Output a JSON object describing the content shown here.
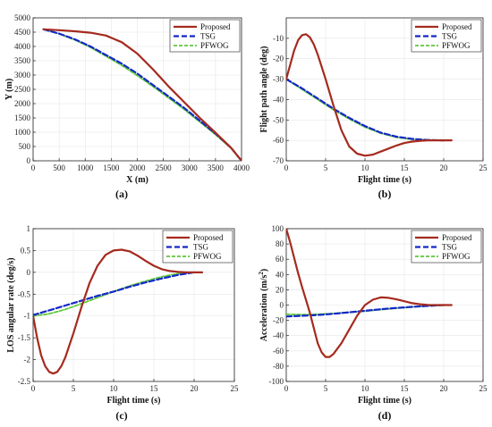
{
  "figure": {
    "colors": {
      "proposed": "#a52a1e",
      "tsg": "#1428c8",
      "pfwog": "#5ec83a",
      "axis": "#222222",
      "grid": "#e6e6e6"
    },
    "panels": [
      {
        "id": "a",
        "caption": "(a)",
        "type": "line",
        "xlabel": "X (m)",
        "ylabel": "Y (m)",
        "xlim": [
          0,
          4000
        ],
        "ylim": [
          0,
          5000
        ],
        "xticks": [
          0,
          500,
          1000,
          1500,
          2000,
          2500,
          3000,
          3500,
          4000
        ],
        "yticks": [
          0,
          500,
          1000,
          1500,
          2000,
          2500,
          3000,
          3500,
          4000,
          4500,
          5000
        ],
        "legend": [
          "Proposed",
          "TSG",
          "PFWOG"
        ],
        "series": [
          {
            "name": "Proposed",
            "style": "solid",
            "x": [
              200,
              500,
              800,
              1100,
              1400,
              1700,
              2000,
              2300,
              2600,
              2900,
              3200,
              3500,
              3800,
              4000
            ],
            "y": [
              4600,
              4570,
              4530,
              4480,
              4380,
              4150,
              3750,
              3200,
              2600,
              2050,
              1500,
              980,
              450,
              0
            ]
          },
          {
            "name": "TSG",
            "style": "dashed",
            "x": [
              200,
              500,
              800,
              1100,
              1400,
              1700,
              2000,
              2300,
              2600,
              2900,
              3200,
              3500,
              3800,
              4000
            ],
            "y": [
              4600,
              4450,
              4250,
              4000,
              3700,
              3400,
              3050,
              2650,
              2250,
              1850,
              1400,
              950,
              450,
              0
            ]
          },
          {
            "name": "PFWOG",
            "style": "dashed",
            "x": [
              200,
              500,
              800,
              1100,
              1400,
              1700,
              2000,
              2300,
              2600,
              2900,
              3200,
              3500,
              3800,
              4000
            ],
            "y": [
              4600,
              4440,
              4230,
              3970,
              3660,
              3340,
              2980,
              2600,
              2200,
              1800,
              1360,
              920,
              440,
              0
            ]
          }
        ]
      },
      {
        "id": "b",
        "caption": "(b)",
        "type": "line",
        "xlabel": "Flight time (s)",
        "ylabel": "Flight path angle (deg)",
        "xlim": [
          0,
          25
        ],
        "ylim": [
          -70,
          0
        ],
        "xticks": [
          0,
          5,
          10,
          15,
          20,
          25
        ],
        "yticks": [
          -70,
          -60,
          -50,
          -40,
          -30,
          -20,
          -10
        ],
        "legend": [
          "Proposed",
          "TSG",
          "PFWOG"
        ],
        "series": [
          {
            "name": "Proposed",
            "style": "solid",
            "x": [
              0,
              0.5,
              1,
              1.5,
              2,
              2.5,
              3,
              3.5,
              4,
              5,
              6,
              7,
              8,
              9,
              10,
              11,
              12,
              13,
              14,
              15,
              16,
              17,
              18,
              19,
              20,
              21
            ],
            "y": [
              -30,
              -23,
              -16,
              -11,
              -8.5,
              -8,
              -9.5,
              -13,
              -18,
              -30,
              -43,
              -55,
              -63,
              -66.5,
              -67.5,
              -67,
              -65.5,
              -64,
              -62.5,
              -61.3,
              -60.6,
              -60.2,
              -60,
              -60,
              -60,
              -60
            ]
          },
          {
            "name": "TSG",
            "style": "dashed",
            "x": [
              0,
              2,
              4,
              6,
              8,
              10,
              12,
              14,
              16,
              18,
              20
            ],
            "y": [
              -30,
              -34.5,
              -39.5,
              -44.5,
              -49,
              -53,
              -56.2,
              -58.2,
              -59.3,
              -59.8,
              -60
            ]
          },
          {
            "name": "PFWOG",
            "style": "dashed",
            "x": [
              0,
              2,
              4,
              6,
              8,
              10,
              12,
              14,
              16,
              18,
              20,
              21
            ],
            "y": [
              -30,
              -35,
              -40,
              -45,
              -49.5,
              -53.5,
              -56.5,
              -58.5,
              -59.5,
              -59.9,
              -60,
              -60
            ]
          }
        ]
      },
      {
        "id": "c",
        "caption": "(c)",
        "type": "line",
        "xlabel": "Flight time (s)",
        "ylabel": "LOS angular rate (deg/s)",
        "xlim": [
          0,
          25
        ],
        "ylim": [
          -2.5,
          1
        ],
        "xticks": [
          0,
          5,
          10,
          15,
          20,
          25
        ],
        "yticks": [
          -2.5,
          -2,
          -1.5,
          -1,
          -0.5,
          0,
          0.5,
          1
        ],
        "legend": [
          "Proposed",
          "TSG",
          "PFWOG"
        ],
        "series": [
          {
            "name": "Proposed",
            "style": "solid",
            "x": [
              0,
              0.5,
              1,
              1.5,
              2,
              2.5,
              3,
              3.5,
              4,
              5,
              6,
              7,
              8,
              9,
              10,
              11,
              12,
              13,
              14,
              15,
              16,
              17,
              18,
              19,
              20,
              21
            ],
            "y": [
              -1,
              -1.5,
              -1.9,
              -2.15,
              -2.28,
              -2.32,
              -2.28,
              -2.15,
              -1.95,
              -1.4,
              -0.8,
              -0.25,
              0.15,
              0.4,
              0.5,
              0.52,
              0.48,
              0.38,
              0.26,
              0.15,
              0.07,
              0.03,
              0.01,
              0,
              0,
              0
            ]
          },
          {
            "name": "TSG",
            "style": "dashed",
            "x": [
              0,
              2,
              4,
              6,
              8,
              10,
              12,
              14,
              16,
              18,
              20
            ],
            "y": [
              -0.98,
              -0.87,
              -0.76,
              -0.65,
              -0.54,
              -0.44,
              -0.33,
              -0.23,
              -0.14,
              -0.06,
              0
            ]
          },
          {
            "name": "PFWOG",
            "style": "dashed",
            "x": [
              0,
              2,
              4,
              6,
              8,
              10,
              12,
              14,
              16,
              18,
              20,
              21
            ],
            "y": [
              -1,
              -0.95,
              -0.85,
              -0.72,
              -0.58,
              -0.44,
              -0.31,
              -0.2,
              -0.1,
              -0.03,
              0,
              0
            ]
          }
        ]
      },
      {
        "id": "d",
        "caption": "(d)",
        "type": "line",
        "xlabel": "Flight time (s)",
        "ylabel": "Acceleration (m/s",
        "ylabel_sup": "2",
        "ylabel_tail": ")",
        "xlim": [
          0,
          25
        ],
        "ylim": [
          -100,
          100
        ],
        "xticks": [
          0,
          5,
          10,
          15,
          20,
          25
        ],
        "yticks": [
          -100,
          -80,
          -60,
          -40,
          -20,
          0,
          20,
          40,
          60,
          80,
          100
        ],
        "legend": [
          "Proposed",
          "TSG",
          "PFWOG"
        ],
        "series": [
          {
            "name": "Proposed",
            "style": "solid",
            "x": [
              0,
              0.5,
              1,
              1.5,
              2,
              3,
              4,
              4.5,
              5,
              5.5,
              6,
              7,
              8,
              9,
              10,
              11,
              12,
              13,
              14,
              15,
              16,
              17,
              18,
              19,
              20,
              21
            ],
            "y": [
              100,
              82,
              62,
              42,
              24,
              -10,
              -50,
              -62,
              -68,
              -68,
              -64,
              -50,
              -32,
              -14,
              0,
              7,
              10,
              9.5,
              7.5,
              5,
              2.5,
              1,
              0.2,
              0,
              0,
              0
            ]
          },
          {
            "name": "TSG",
            "style": "dashed",
            "x": [
              0,
              2,
              4,
              6,
              8,
              10,
              12,
              14,
              16,
              18,
              20
            ],
            "y": [
              -15,
              -14,
              -13,
              -11.5,
              -9.5,
              -7.5,
              -5.5,
              -3.8,
              -2.3,
              -1,
              0
            ]
          },
          {
            "name": "PFWOG",
            "style": "dashed",
            "x": [
              0,
              2,
              4,
              6,
              8,
              10,
              12,
              14,
              16,
              18,
              20,
              21
            ],
            "y": [
              -12,
              -12.5,
              -12,
              -11,
              -9.5,
              -8,
              -6,
              -4.2,
              -2.6,
              -1.2,
              0,
              0
            ]
          }
        ]
      }
    ]
  },
  "chart_data": [
    {
      "type": "line",
      "title": "",
      "xlabel": "X (m)",
      "ylabel": "Y (m)",
      "xlim": [
        0,
        4000
      ],
      "ylim": [
        0,
        5000
      ],
      "grid": true,
      "legend": "top-right",
      "series": [
        {
          "name": "Proposed",
          "x": [
            200,
            800,
            1400,
            2000,
            2600,
            3200,
            3800,
            4000
          ],
          "y": [
            4600,
            4530,
            4380,
            3750,
            2600,
            1500,
            450,
            0
          ]
        },
        {
          "name": "TSG",
          "x": [
            200,
            800,
            1400,
            2000,
            2600,
            3200,
            3800,
            4000
          ],
          "y": [
            4600,
            4250,
            3700,
            3050,
            2250,
            1400,
            450,
            0
          ]
        },
        {
          "name": "PFWOG",
          "x": [
            200,
            800,
            1400,
            2000,
            2600,
            3200,
            3800,
            4000
          ],
          "y": [
            4600,
            4230,
            3660,
            2980,
            2200,
            1360,
            440,
            0
          ]
        }
      ]
    },
    {
      "type": "line",
      "title": "",
      "xlabel": "Flight time (s)",
      "ylabel": "Flight path angle (deg)",
      "xlim": [
        0,
        25
      ],
      "ylim": [
        -70,
        0
      ],
      "grid": true,
      "legend": "top-right",
      "series": [
        {
          "name": "Proposed",
          "x": [
            0,
            2.5,
            5,
            8,
            10,
            14,
            18,
            21
          ],
          "y": [
            -30,
            -8,
            -30,
            -63,
            -67.5,
            -62.5,
            -60,
            -60
          ]
        },
        {
          "name": "TSG",
          "x": [
            0,
            4,
            8,
            12,
            16,
            20
          ],
          "y": [
            -30,
            -39.5,
            -49,
            -56.2,
            -59.3,
            -60
          ]
        },
        {
          "name": "PFWOG",
          "x": [
            0,
            4,
            8,
            12,
            16,
            21
          ],
          "y": [
            -30,
            -40,
            -49.5,
            -56.5,
            -59.5,
            -60
          ]
        }
      ]
    },
    {
      "type": "line",
      "title": "",
      "xlabel": "Flight time (s)",
      "ylabel": "LOS angular rate (deg/s)",
      "xlim": [
        0,
        25
      ],
      "ylim": [
        -2.5,
        1
      ],
      "grid": true,
      "legend": "top-right",
      "series": [
        {
          "name": "Proposed",
          "x": [
            0,
            2.5,
            5,
            7,
            11,
            15,
            19,
            21
          ],
          "y": [
            -1,
            -2.32,
            -1.4,
            -0.25,
            0.52,
            0.15,
            0,
            0
          ]
        },
        {
          "name": "TSG",
          "x": [
            0,
            4,
            8,
            12,
            16,
            20
          ],
          "y": [
            -0.98,
            -0.76,
            -0.54,
            -0.33,
            -0.14,
            0
          ]
        },
        {
          "name": "PFWOG",
          "x": [
            0,
            4,
            8,
            12,
            16,
            21
          ],
          "y": [
            -1,
            -0.85,
            -0.58,
            -0.31,
            -0.1,
            0
          ]
        }
      ]
    },
    {
      "type": "line",
      "title": "",
      "xlabel": "Flight time (s)",
      "ylabel": "Acceleration (m/s2)",
      "xlim": [
        0,
        25
      ],
      "ylim": [
        -100,
        100
      ],
      "grid": true,
      "legend": "top-right",
      "series": [
        {
          "name": "Proposed",
          "x": [
            0,
            2,
            5,
            8,
            10,
            12,
            16,
            21
          ],
          "y": [
            100,
            24,
            -68,
            -32,
            0,
            10,
            2.5,
            0
          ]
        },
        {
          "name": "TSG",
          "x": [
            0,
            4,
            8,
            12,
            16,
            20
          ],
          "y": [
            -15,
            -13,
            -9.5,
            -5.5,
            -2.3,
            0
          ]
        },
        {
          "name": "PFWOG",
          "x": [
            0,
            4,
            8,
            12,
            16,
            21
          ],
          "y": [
            -12,
            -12,
            -9.5,
            -6,
            -2.6,
            0
          ]
        }
      ]
    }
  ]
}
